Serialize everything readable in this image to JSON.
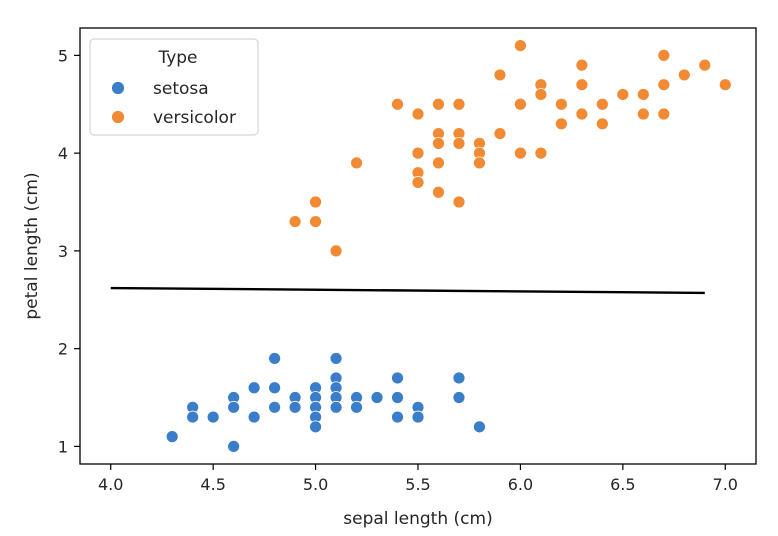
{
  "chart_data": {
    "type": "scatter",
    "xlabel": "sepal length (cm)",
    "ylabel": "petal length (cm)",
    "xlim": [
      3.85,
      7.15
    ],
    "ylim": [
      0.82,
      5.28
    ],
    "xticks": [
      "4.0",
      "4.5",
      "5.0",
      "5.5",
      "6.0",
      "6.5",
      "7.0"
    ],
    "yticks": [
      "1",
      "2",
      "3",
      "4",
      "5"
    ],
    "grid": false,
    "legend": {
      "title": "Type",
      "placement": "top-left"
    },
    "series": [
      {
        "name": "setosa",
        "color": "#3a7dc9",
        "points": [
          [
            4.3,
            1.1
          ],
          [
            4.4,
            1.4
          ],
          [
            4.4,
            1.3
          ],
          [
            4.5,
            1.3
          ],
          [
            4.6,
            1.5
          ],
          [
            4.6,
            1.4
          ],
          [
            4.6,
            1.0
          ],
          [
            4.7,
            1.6
          ],
          [
            4.7,
            1.3
          ],
          [
            4.8,
            1.9
          ],
          [
            4.8,
            1.6
          ],
          [
            4.8,
            1.4
          ],
          [
            4.9,
            1.5
          ],
          [
            4.9,
            1.4
          ],
          [
            5.0,
            1.6
          ],
          [
            5.0,
            1.5
          ],
          [
            5.0,
            1.4
          ],
          [
            5.0,
            1.3
          ],
          [
            5.0,
            1.2
          ],
          [
            5.1,
            1.9
          ],
          [
            5.1,
            1.7
          ],
          [
            5.1,
            1.6
          ],
          [
            5.1,
            1.5
          ],
          [
            5.1,
            1.4
          ],
          [
            5.2,
            1.5
          ],
          [
            5.2,
            1.4
          ],
          [
            5.3,
            1.5
          ],
          [
            5.4,
            1.7
          ],
          [
            5.4,
            1.5
          ],
          [
            5.4,
            1.3
          ],
          [
            5.5,
            1.4
          ],
          [
            5.5,
            1.3
          ],
          [
            5.7,
            1.7
          ],
          [
            5.7,
            1.5
          ],
          [
            5.8,
            1.2
          ]
        ]
      },
      {
        "name": "versicolor",
        "color": "#f28a33",
        "points": [
          [
            4.9,
            3.3
          ],
          [
            5.0,
            3.5
          ],
          [
            5.0,
            3.3
          ],
          [
            5.1,
            3.0
          ],
          [
            5.2,
            3.9
          ],
          [
            5.4,
            4.5
          ],
          [
            5.5,
            4.4
          ],
          [
            5.5,
            4.0
          ],
          [
            5.5,
            3.8
          ],
          [
            5.5,
            3.7
          ],
          [
            5.6,
            4.5
          ],
          [
            5.6,
            4.2
          ],
          [
            5.6,
            4.1
          ],
          [
            5.6,
            3.9
          ],
          [
            5.6,
            3.6
          ],
          [
            5.7,
            4.5
          ],
          [
            5.7,
            4.2
          ],
          [
            5.7,
            4.1
          ],
          [
            5.7,
            3.5
          ],
          [
            5.8,
            4.1
          ],
          [
            5.8,
            4.0
          ],
          [
            5.8,
            3.9
          ],
          [
            5.9,
            4.8
          ],
          [
            5.9,
            4.2
          ],
          [
            6.0,
            5.1
          ],
          [
            6.0,
            4.5
          ],
          [
            6.0,
            4.0
          ],
          [
            6.1,
            4.7
          ],
          [
            6.1,
            4.6
          ],
          [
            6.1,
            4.0
          ],
          [
            6.2,
            4.5
          ],
          [
            6.2,
            4.3
          ],
          [
            6.3,
            4.9
          ],
          [
            6.3,
            4.7
          ],
          [
            6.3,
            4.4
          ],
          [
            6.4,
            4.5
          ],
          [
            6.4,
            4.3
          ],
          [
            6.5,
            4.6
          ],
          [
            6.6,
            4.6
          ],
          [
            6.6,
            4.4
          ],
          [
            6.7,
            5.0
          ],
          [
            6.7,
            4.7
          ],
          [
            6.7,
            4.4
          ],
          [
            6.8,
            4.8
          ],
          [
            6.9,
            4.9
          ],
          [
            7.0,
            4.7
          ]
        ]
      }
    ],
    "line": {
      "color": "#000000",
      "points": [
        [
          4.0,
          2.62
        ],
        [
          6.9,
          2.57
        ]
      ]
    }
  }
}
